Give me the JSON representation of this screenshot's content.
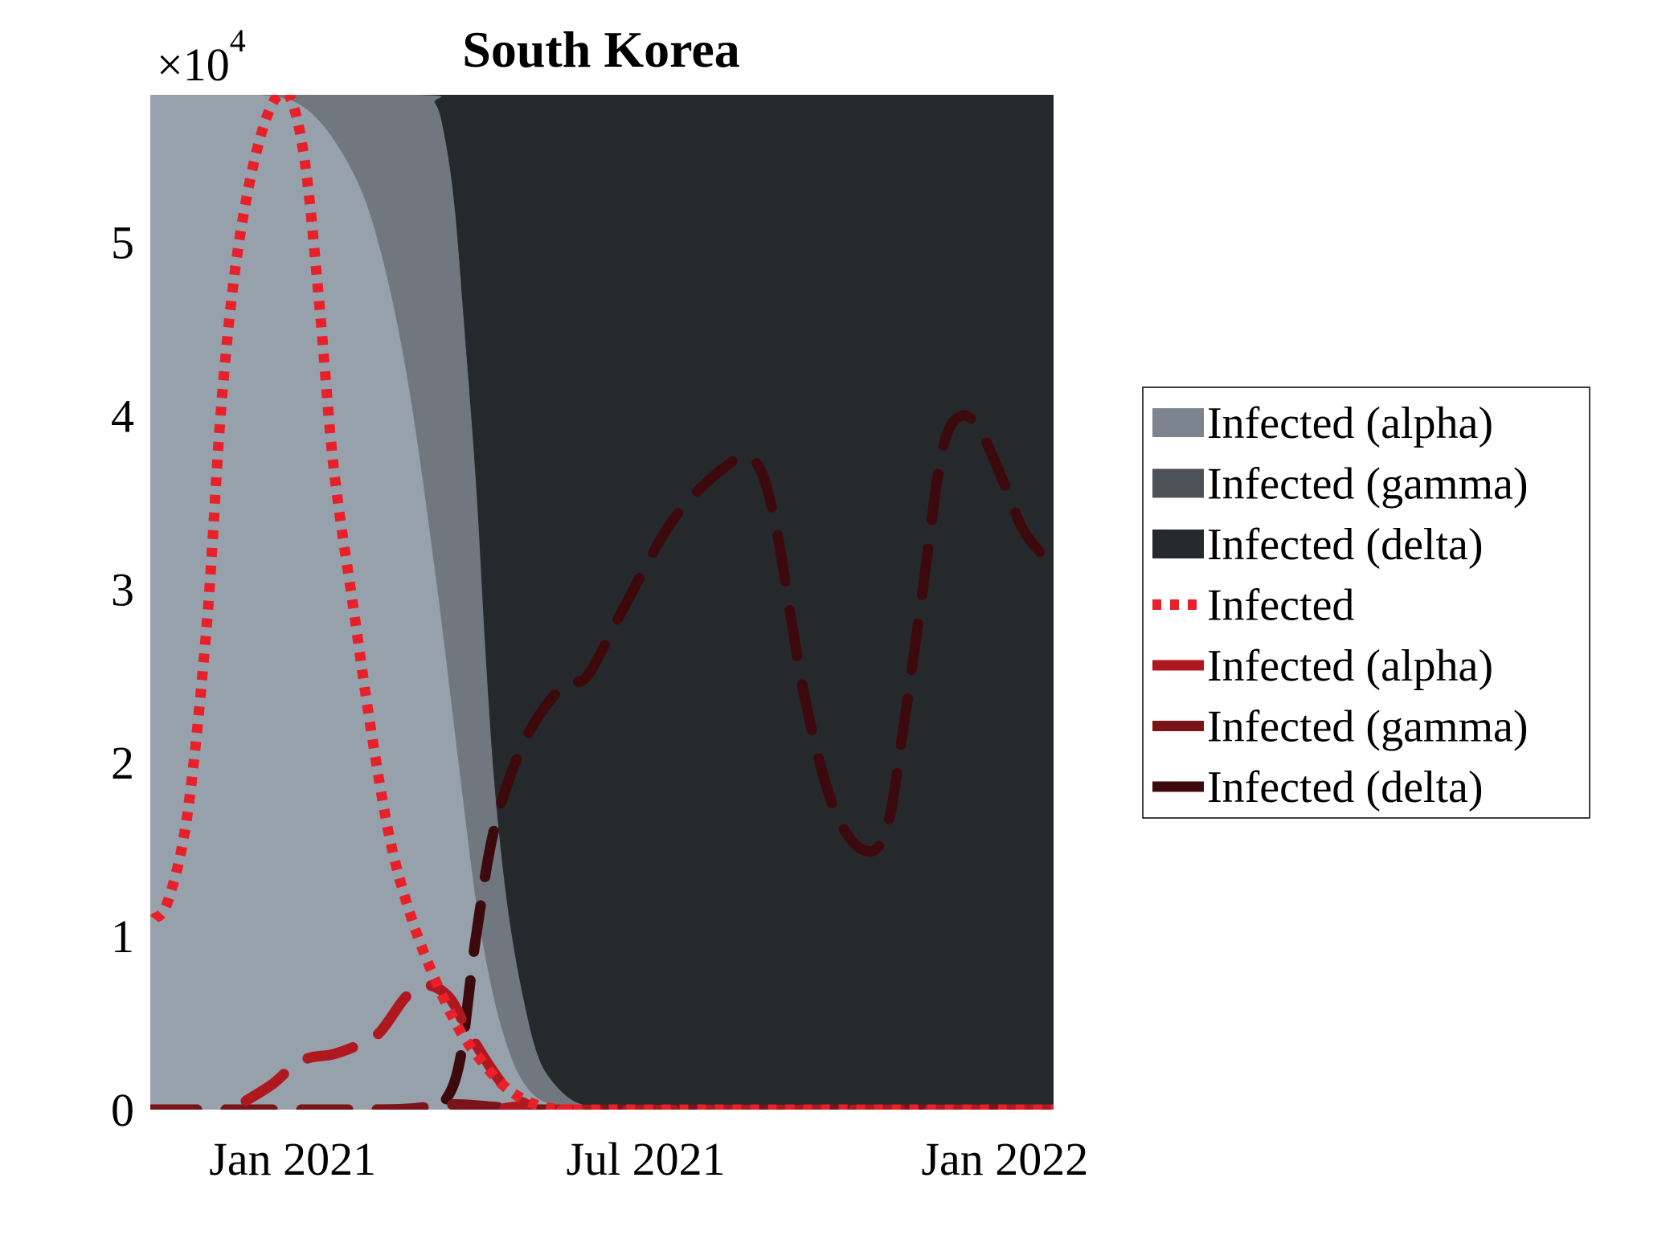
{
  "chart_data": {
    "type": "area",
    "title": "South Korea",
    "xlabel": "",
    "ylabel": "",
    "y_multiplier_label": "×10",
    "y_multiplier_exponent": "4",
    "x_range": [
      "2020-10-20",
      "2022-01-26"
    ],
    "y_range": [
      0,
      58500
    ],
    "x_ticks": [
      {
        "date": "2021-01-01",
        "label": "Jan 2021"
      },
      {
        "date": "2021-07-01",
        "label": "Jul 2021"
      },
      {
        "date": "2022-01-01",
        "label": "Jan 2022"
      }
    ],
    "y_ticks": [
      {
        "value": 0,
        "label": "0"
      },
      {
        "value": 10000,
        "label": "1"
      },
      {
        "value": 20000,
        "label": "2"
      },
      {
        "value": 30000,
        "label": "3"
      },
      {
        "value": 40000,
        "label": "4"
      },
      {
        "value": 50000,
        "label": "5"
      }
    ],
    "grid": false,
    "legend_position": "right",
    "areas": {
      "note_units": "cumulative upper boundaries of stacked filled regions, in y data units",
      "alpha": {
        "name": "Infected (alpha)",
        "color": "#96a1ab",
        "x": [
          "2020-10-20",
          "2020-12-15",
          "2021-01-10",
          "2021-02-01",
          "2021-02-15",
          "2021-03-01",
          "2021-03-15",
          "2021-03-27",
          "2021-04-05",
          "2021-04-13",
          "2021-04-20",
          "2021-04-27",
          "2021-05-05",
          "2021-05-15",
          "2021-05-25",
          "2021-06-05",
          "2021-06-15",
          "2022-01-26"
        ],
        "y": [
          58500,
          58500,
          57500,
          54000,
          49500,
          42000,
          31000,
          20000,
          12000,
          7000,
          4000,
          2000,
          800,
          250,
          80,
          10,
          0,
          0
        ]
      },
      "gamma": {
        "name": "Infected (gamma)",
        "color": "#70777f",
        "x": [
          "2020-10-20",
          "2021-03-05",
          "2021-03-15",
          "2021-03-20",
          "2021-03-25",
          "2021-03-30",
          "2021-04-05",
          "2021-04-10",
          "2021-04-15",
          "2021-04-22",
          "2021-04-30",
          "2021-05-07",
          "2021-05-15",
          "2021-05-25",
          "2021-06-05",
          "2021-06-15",
          "2021-06-25",
          "2022-01-26"
        ],
        "y": [
          58500,
          58500,
          58000,
          56000,
          52000,
          45000,
          36000,
          26000,
          18000,
          11000,
          6000,
          3000,
          1500,
          500,
          150,
          40,
          0,
          0
        ]
      },
      "delta": {
        "name": "Infected (delta)",
        "color": "#26292c",
        "x": [
          "2020-10-20",
          "2022-01-26"
        ],
        "y": [
          58500,
          58500
        ]
      }
    },
    "series": [
      {
        "name": "Infected",
        "color": "#e8202a",
        "style": "dotted",
        "x": [
          "2020-10-22",
          "2020-10-29",
          "2020-11-08",
          "2020-11-18",
          "2020-11-25",
          "2020-12-02",
          "2020-12-10",
          "2020-12-18",
          "2020-12-25",
          "2021-01-01",
          "2021-01-08",
          "2021-01-15",
          "2021-01-22",
          "2021-02-01",
          "2021-02-10",
          "2021-02-20",
          "2021-03-03",
          "2021-03-15",
          "2021-03-28",
          "2021-04-10",
          "2021-04-20",
          "2021-05-01",
          "2021-05-12",
          "2021-05-25",
          "2021-06-10",
          "2022-01-26"
        ],
        "y": [
          11000,
          12000,
          17000,
          28000,
          40000,
          48000,
          53500,
          57000,
          58500,
          58000,
          54000,
          46000,
          37000,
          29000,
          22000,
          15500,
          11000,
          7500,
          4500,
          2500,
          1300,
          500,
          100,
          0,
          0,
          0
        ]
      },
      {
        "name": "Infected (alpha)",
        "color": "#b01820",
        "style": "dashed",
        "x": [
          "2020-12-08",
          "2020-12-22",
          "2021-01-01",
          "2021-01-10",
          "2021-01-22",
          "2021-02-05",
          "2021-02-15",
          "2021-02-28",
          "2021-03-10",
          "2021-03-22",
          "2021-04-01",
          "2021-04-12",
          "2021-04-22",
          "2021-05-01",
          "2021-05-12",
          "2022-01-26"
        ],
        "y": [
          500,
          1500,
          2500,
          3000,
          3200,
          3800,
          4500,
          6500,
          7200,
          6500,
          4500,
          2500,
          1000,
          300,
          0,
          0
        ]
      },
      {
        "name": "Infected (gamma)",
        "color": "#7a1418",
        "style": "dashed",
        "x": [
          "2020-10-20",
          "2021-02-01",
          "2021-03-01",
          "2021-03-25",
          "2021-04-15",
          "2021-05-10",
          "2022-01-26"
        ],
        "y": [
          0,
          0,
          50,
          300,
          150,
          0,
          0
        ]
      },
      {
        "name": "Infected (delta)",
        "color": "#3c0a0d",
        "style": "dashed",
        "x": [
          "2020-10-20",
          "2021-02-15",
          "2021-03-01",
          "2021-03-10",
          "2021-03-20",
          "2021-03-28",
          "2021-04-05",
          "2021-04-15",
          "2021-05-01",
          "2021-05-20",
          "2021-06-01",
          "2021-06-20",
          "2021-07-15",
          "2021-08-10",
          "2021-08-25",
          "2021-09-05",
          "2021-09-20",
          "2021-10-05",
          "2021-10-20",
          "2021-11-01",
          "2021-11-10",
          "2021-11-20",
          "2021-11-30",
          "2021-12-10",
          "2021-12-20",
          "2022-01-01",
          "2022-01-10",
          "2022-01-20",
          "2022-01-26"
        ],
        "y": [
          0,
          0,
          0,
          0,
          500,
          3000,
          10000,
          16500,
          21500,
          24500,
          25000,
          29000,
          34000,
          37000,
          37500,
          34000,
          24000,
          17500,
          15000,
          16000,
          22000,
          30000,
          38000,
          40000,
          39000,
          36000,
          33500,
          32000,
          31000
        ]
      }
    ],
    "legend": [
      {
        "label": "Infected (alpha)",
        "kind": "patch",
        "color": "#7c858f"
      },
      {
        "label": "Infected (gamma)",
        "kind": "patch",
        "color": "#4d5258"
      },
      {
        "label": "Infected (delta)",
        "kind": "patch",
        "color": "#26292c"
      },
      {
        "label": "Infected",
        "kind": "dotted",
        "color": "#e8202a"
      },
      {
        "label": "Infected (alpha)",
        "kind": "line",
        "color": "#b01820"
      },
      {
        "label": "Infected (gamma)",
        "kind": "line",
        "color": "#7a1418"
      },
      {
        "label": "Infected (delta)",
        "kind": "line",
        "color": "#3c0a0d"
      }
    ]
  }
}
